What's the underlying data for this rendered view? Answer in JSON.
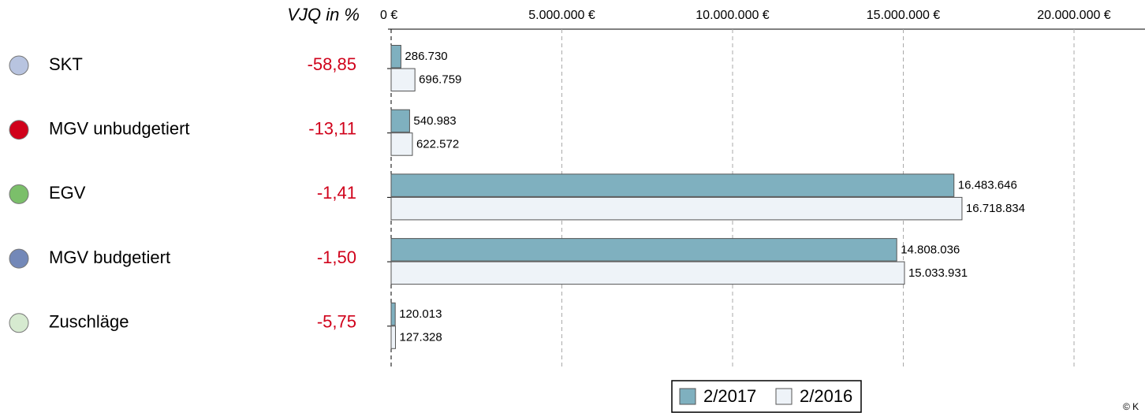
{
  "chart_data": {
    "type": "bar",
    "orientation": "horizontal",
    "column_header": "VJQ in %",
    "categories": [
      "SKT",
      "MGV unbudgetiert",
      "EGV",
      "MGV budgetiert",
      "Zuschläge"
    ],
    "category_colors": [
      "#b8c4e0",
      "#d0021b",
      "#7bbf6a",
      "#7388b8",
      "#d6ead0"
    ],
    "change": {
      "values": [
        -58.85,
        -13.11,
        -1.41,
        -1.5,
        -5.75
      ],
      "value_labels": [
        "-58,85",
        "-13,11",
        "-1,41",
        "-1,50",
        "-5,75"
      ]
    },
    "series": [
      {
        "name": "2/2017",
        "color": "#7fb0bf",
        "values": [
          286730,
          540983,
          16483646,
          14808036,
          120013
        ],
        "value_labels": [
          "286.730",
          "540.983",
          "16.483.646",
          "14.808.036",
          "120.013"
        ]
      },
      {
        "name": "2/2016",
        "color": "#eef3f8",
        "values": [
          696759,
          622572,
          16718834,
          15033931,
          127328
        ],
        "value_labels": [
          "696.759",
          "622.572",
          "16.718.834",
          "15.033.931",
          "127.328"
        ]
      }
    ],
    "xlim": [
      0,
      22000000
    ],
    "xticks": [
      {
        "value": 0,
        "label": "0 €"
      },
      {
        "value": 5000000,
        "label": "5.000.000 €"
      },
      {
        "value": 10000000,
        "label": "10.000.000 €"
      },
      {
        "value": 15000000,
        "label": "15.000.000 €"
      },
      {
        "value": 20000000,
        "label": "20.000.000 €"
      }
    ],
    "grid": true,
    "legend": "bottom",
    "copyright": "© K"
  }
}
